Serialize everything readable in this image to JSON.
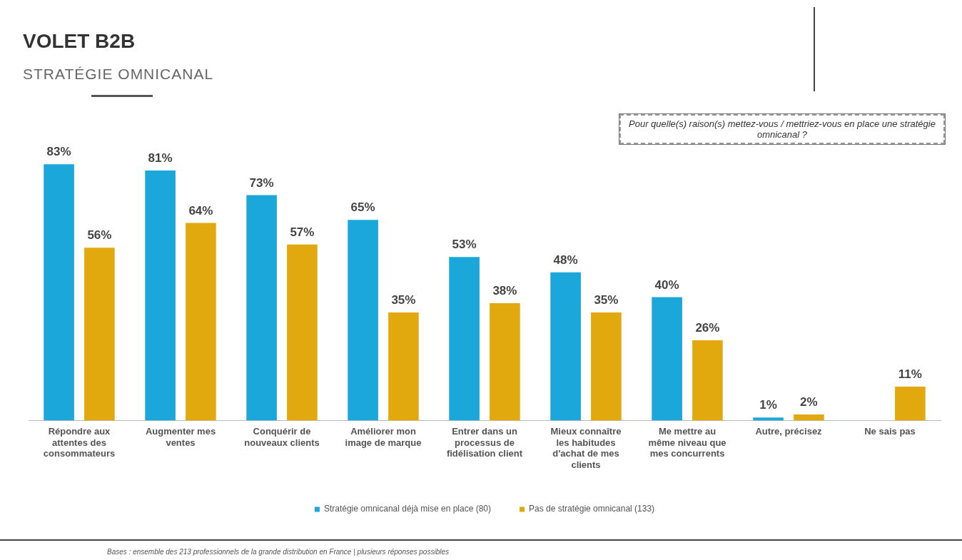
{
  "chart_data": {
    "type": "bar",
    "title": "VOLET B2B",
    "subtitle": "STRATÉGIE OMNICANAL",
    "categories": [
      "Répondre aux attentes des consommateurs",
      "Augmenter mes ventes",
      "Conquérir de nouveaux clients",
      "Améliorer mon image de marque",
      "Entrer dans un processus de fidélisation client",
      "Mieux connaître les habitudes d'achat de mes clients",
      "Me mettre au même niveau que mes concurrents",
      "Autre, précisez",
      "Ne sais pas"
    ],
    "series": [
      {
        "name": "Stratégie omnicanal déjà mise en place (80)",
        "color": "#1ba7da",
        "values": [
          83,
          81,
          73,
          65,
          53,
          48,
          40,
          1,
          null
        ],
        "value_labels": [
          "83%",
          "81%",
          "73%",
          "65%",
          "53%",
          "48%",
          "40%",
          "1%",
          null
        ]
      },
      {
        "name": "Pas de stratégie omnicanal (133)",
        "color": "#e2a90e",
        "values": [
          56,
          64,
          57,
          35,
          38,
          35,
          26,
          2,
          11
        ],
        "value_labels": [
          "56%",
          "64%",
          "57%",
          "35%",
          "38%",
          "35%",
          "26%",
          "2%",
          "11%"
        ]
      }
    ],
    "legend": "bottom",
    "grid": false,
    "annotations": [
      "Pour quelle(s) raison(s) mettez-vous / mettriez-vous en place une stratégie omnicanal ?",
      "Bases : ensemble des 213 professionnels de la grande distribution en France | plusieurs réponses possibles"
    ]
  }
}
